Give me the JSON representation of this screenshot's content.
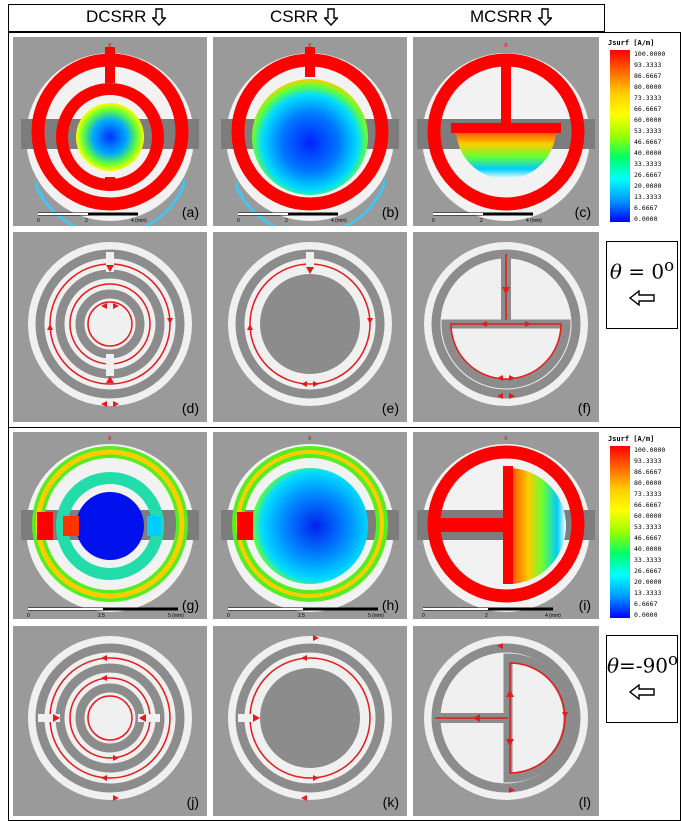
{
  "columns": [
    {
      "label": "DCSRR"
    },
    {
      "label": "CSRR"
    },
    {
      "label": "MCSRR"
    }
  ],
  "panel_labels": [
    "(a)",
    "(b)",
    "(c)",
    "(d)",
    "(e)",
    "(f)",
    "(g)",
    "(h)",
    "(i)",
    "(j)",
    "(k)",
    "(l)"
  ],
  "axis_marker": "x",
  "scale_top": {
    "t0": "0",
    "t1": "2",
    "t2": "4 (mm)"
  },
  "scale_bottom": {
    "t0": "0",
    "t1": "2.5",
    "t2": "5 (mm)"
  },
  "scale_bottom_c": {
    "t0": "0",
    "t1": "2",
    "t2": "4 (mm)"
  },
  "legend": {
    "title": "Jsurf [A/m]",
    "values": [
      "100.0000",
      "93.3333",
      "86.6667",
      "80.0000",
      "73.3333",
      "66.6667",
      "60.0000",
      "53.3333",
      "46.6667",
      "40.0000",
      "33.3333",
      "26.6667",
      "20.0000",
      "13.3333",
      "6.6667",
      "0.0000"
    ],
    "colors": [
      "#ff0000",
      "#ff3300",
      "#ff6600",
      "#ff9900",
      "#ffcc00",
      "#ffff00",
      "#ccff00",
      "#66ff00",
      "#00ff33",
      "#00ff99",
      "#00ffff",
      "#00ccff",
      "#0099ff",
      "#0066ff",
      "#0033ff",
      "#0000ff"
    ]
  },
  "theta_top": {
    "symbol": "θ",
    "text": " = 0",
    "sup": "o"
  },
  "theta_bottom": {
    "symbol": "θ",
    "text": "=-90",
    "sup": "o"
  },
  "colors": {
    "panel_bg": "#9a9a9a",
    "ring": "#efefef",
    "current": "#ff0000",
    "strip": "#7d7d7d"
  }
}
